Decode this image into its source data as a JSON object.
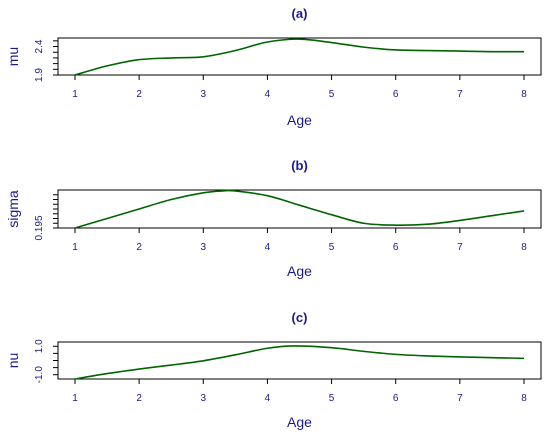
{
  "chart_data": [
    {
      "type": "line",
      "title": "(a)",
      "xlabel": "Age",
      "ylabel": "mu",
      "xlim": [
        1,
        8
      ],
      "ylim": [
        1.9,
        2.55
      ],
      "x_ticks": [
        1,
        2,
        3,
        4,
        5,
        6,
        7,
        8
      ],
      "y_ticks": [
        1.9,
        2.4
      ],
      "y_tick_labels": [
        "1.9",
        "2.4"
      ],
      "y_minor_ticks": [
        2.0,
        2.1,
        2.2,
        2.3,
        2.5
      ],
      "color": "#006400",
      "series": [
        {
          "x": [
            1,
            1.5,
            2,
            2.5,
            3,
            3.5,
            4,
            4.5,
            5,
            5.5,
            6,
            6.5,
            7,
            7.5,
            8
          ],
          "y": [
            1.9,
            2.06,
            2.17,
            2.2,
            2.22,
            2.33,
            2.48,
            2.53,
            2.47,
            2.39,
            2.34,
            2.33,
            2.32,
            2.31,
            2.31
          ]
        }
      ]
    },
    {
      "type": "line",
      "title": "(b)",
      "xlabel": "Age",
      "ylabel": "sigma",
      "xlim": [
        1,
        8
      ],
      "ylim": [
        0.195,
        0.235
      ],
      "x_ticks": [
        1,
        2,
        3,
        4,
        5,
        6,
        7,
        8
      ],
      "y_ticks": [
        0.195
      ],
      "y_tick_labels": [
        "0.195"
      ],
      "y_minor_ticks": [
        0.2,
        0.205,
        0.21,
        0.215,
        0.22,
        0.225,
        0.23
      ],
      "color": "#006400",
      "series": [
        {
          "x": [
            1,
            1.5,
            2,
            2.5,
            3,
            3.3,
            3.5,
            4,
            4.5,
            5,
            5.5,
            6,
            6.5,
            7,
            7.5,
            8
          ],
          "y": [
            0.195,
            0.205,
            0.215,
            0.225,
            0.232,
            0.234,
            0.234,
            0.229,
            0.219,
            0.209,
            0.2,
            0.198,
            0.199,
            0.203,
            0.208,
            0.213
          ]
        }
      ]
    },
    {
      "type": "line",
      "title": "(c)",
      "xlabel": "Age",
      "ylabel": "nu",
      "xlim": [
        1,
        8
      ],
      "ylim": [
        -1.3,
        1.3
      ],
      "x_ticks": [
        1,
        2,
        3,
        4,
        5,
        6,
        7,
        8
      ],
      "y_ticks": [
        -1.0,
        1.0
      ],
      "y_tick_labels": [
        "-1.0",
        "1.0"
      ],
      "y_minor_ticks": [
        -0.5,
        0,
        0.5
      ],
      "color": "#006400",
      "series": [
        {
          "x": [
            1,
            1.5,
            2,
            2.5,
            3,
            3.5,
            4,
            4.4,
            5,
            5.5,
            6,
            6.5,
            7,
            7.5,
            8
          ],
          "y": [
            -1.3,
            -0.92,
            -0.6,
            -0.32,
            -0.02,
            0.4,
            0.86,
            1.02,
            0.9,
            0.64,
            0.43,
            0.32,
            0.25,
            0.2,
            0.15
          ]
        }
      ]
    }
  ]
}
